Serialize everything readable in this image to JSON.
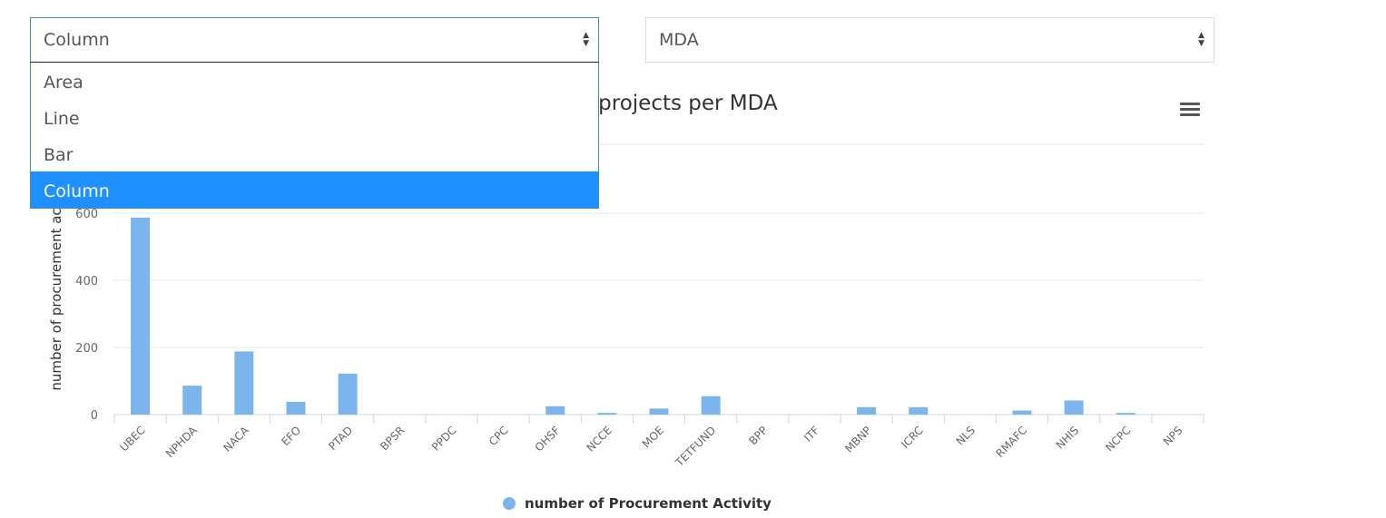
{
  "controls": {
    "chart_type_select": {
      "value": "Column",
      "options": [
        "Area",
        "Line",
        "Bar",
        "Column"
      ],
      "selected": "Column"
    },
    "group_by_select": {
      "value": "MDA"
    }
  },
  "chart_data": {
    "type": "bar",
    "title": "procurement/projects per MDA",
    "ylabel": "number of procurement ac",
    "categories": [
      "UBEC",
      "NPHDA",
      "NACA",
      "EFO",
      "PTAD",
      "BPSR",
      "PPDC",
      "CPC",
      "OHSF",
      "NCCE",
      "MOE",
      "TETFUND",
      "BPP",
      "ITF",
      "MBNP",
      "ICRC",
      "NLS",
      "RMAFC",
      "NHIS",
      "NCPC",
      "NPS"
    ],
    "series": [
      {
        "name": "number of Procurement Activity",
        "values": [
          587,
          86,
          188,
          38,
          122,
          0,
          0,
          0,
          25,
          5,
          18,
          55,
          0,
          0,
          22,
          22,
          0,
          12,
          42,
          5,
          0
        ]
      }
    ],
    "ylim": [
      0,
      600
    ],
    "yticks": [
      0,
      200,
      400,
      600
    ],
    "grid": true,
    "legend": "bottom-center",
    "color": "#7cb5ec"
  },
  "icons": {
    "chart_menu": "hamburger-menu-icon",
    "select_arrow": "updown-caret-icon"
  }
}
